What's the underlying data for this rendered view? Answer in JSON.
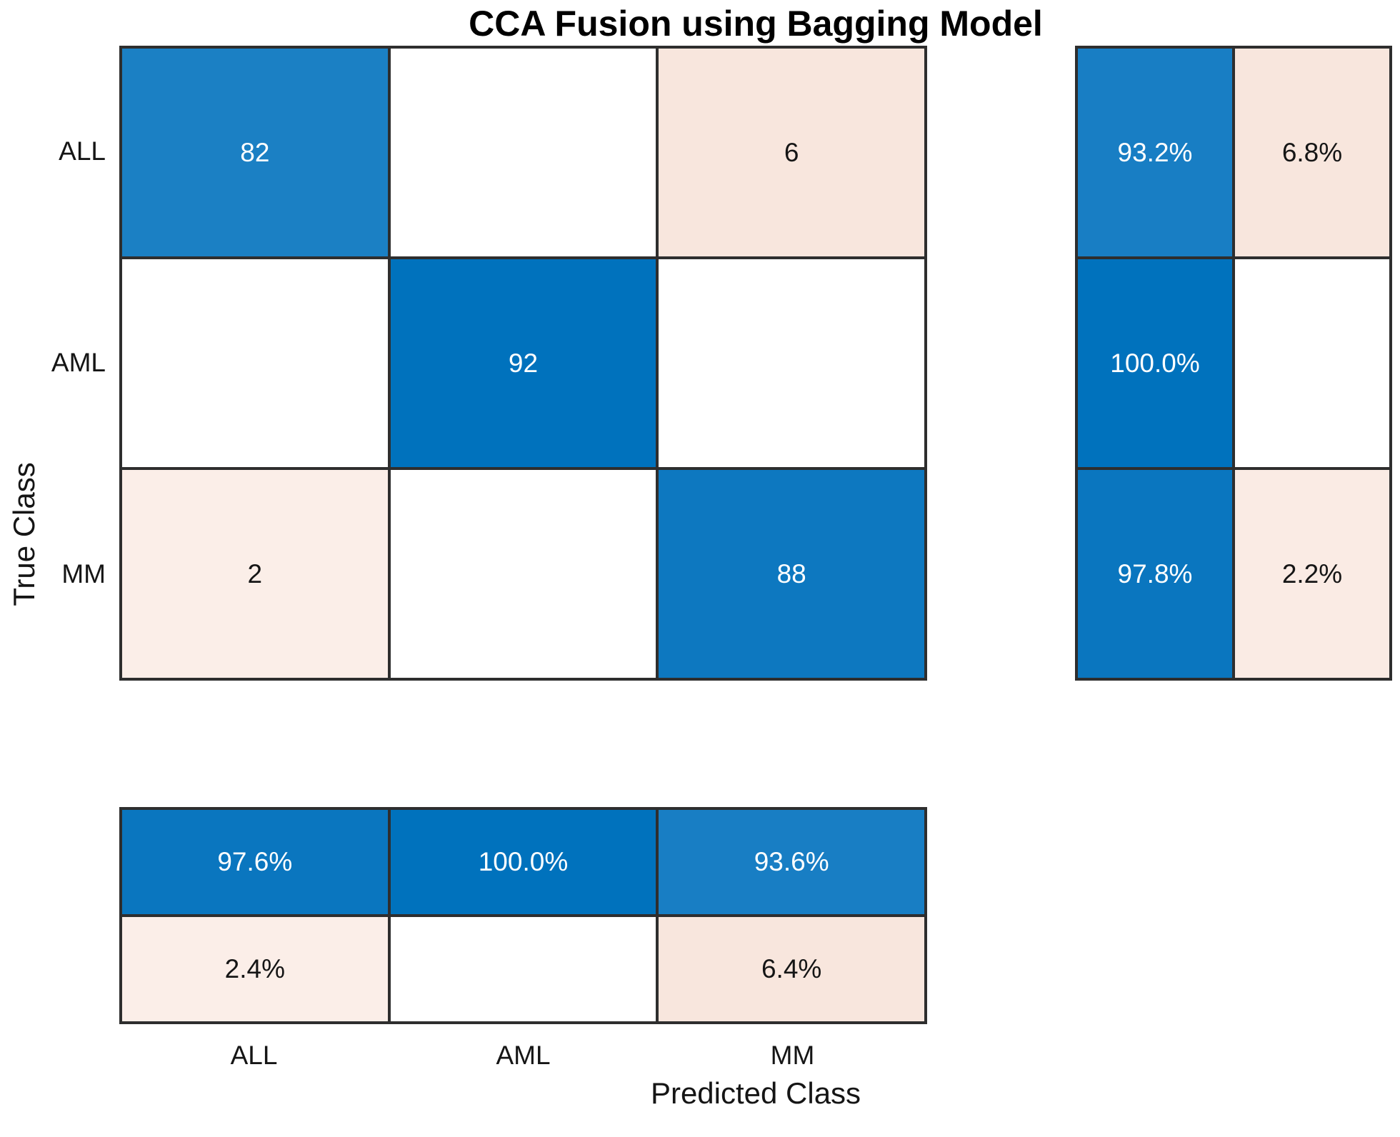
{
  "title": "CCA Fusion using Bagging Model",
  "x_axis": {
    "label": "Predicted Class",
    "ticks": [
      "ALL",
      "AML",
      "MM"
    ]
  },
  "y_axis": {
    "label": "True Class",
    "ticks": [
      "ALL",
      "AML",
      "MM"
    ]
  },
  "colors": {
    "diagonal_blue_max": "#0072bd",
    "grid_line": "#2e2e2e",
    "text_dark": "#151515",
    "text_light": "#ffffff",
    "offdiagonal_pink": "#f8e6dd"
  },
  "matrix": {
    "cells": [
      [
        {
          "text": "82",
          "bg": "#1b80c4",
          "fg": "#ffffff"
        },
        {
          "text": "",
          "bg": "#ffffff",
          "fg": "#151515"
        },
        {
          "text": "6",
          "bg": "#f8e6dd",
          "fg": "#151515"
        }
      ],
      [
        {
          "text": "",
          "bg": "#ffffff",
          "fg": "#151515"
        },
        {
          "text": "92",
          "bg": "#0072bd",
          "fg": "#ffffff"
        },
        {
          "text": "",
          "bg": "#ffffff",
          "fg": "#151515"
        }
      ],
      [
        {
          "text": "2",
          "bg": "#fbeee8",
          "fg": "#151515"
        },
        {
          "text": "",
          "bg": "#ffffff",
          "fg": "#151515"
        },
        {
          "text": "88",
          "bg": "#0d78c0",
          "fg": "#ffffff"
        }
      ]
    ]
  },
  "row_summary": {
    "cells": [
      [
        {
          "text": "93.2%",
          "bg": "#187ec4",
          "fg": "#ffffff"
        },
        {
          "text": "6.8%",
          "bg": "#f8e6dd",
          "fg": "#151515"
        }
      ],
      [
        {
          "text": "100.0%",
          "bg": "#0072bd",
          "fg": "#ffffff"
        },
        {
          "text": "",
          "bg": "#ffffff",
          "fg": "#151515"
        }
      ],
      [
        {
          "text": "97.8%",
          "bg": "#0a76bf",
          "fg": "#ffffff"
        },
        {
          "text": "2.2%",
          "bg": "#faebe4",
          "fg": "#151515"
        }
      ]
    ]
  },
  "col_summary": {
    "cells": [
      [
        {
          "text": "97.6%",
          "bg": "#0a76bf",
          "fg": "#ffffff"
        },
        {
          "text": "100.0%",
          "bg": "#0072bd",
          "fg": "#ffffff"
        },
        {
          "text": "93.6%",
          "bg": "#187ec4",
          "fg": "#ffffff"
        }
      ],
      [
        {
          "text": "2.4%",
          "bg": "#fbeee8",
          "fg": "#151515"
        },
        {
          "text": "",
          "bg": "#ffffff",
          "fg": "#151515"
        },
        {
          "text": "6.4%",
          "bg": "#f8e6dd",
          "fg": "#151515"
        }
      ]
    ]
  },
  "chart_data": {
    "type": "heatmap",
    "subtype": "confusion-matrix",
    "title": "CCA Fusion using Bagging Model",
    "xlabel": "Predicted Class",
    "ylabel": "True Class",
    "classes": [
      "ALL",
      "AML",
      "MM"
    ],
    "counts": [
      [
        82,
        0,
        6
      ],
      [
        0,
        92,
        0
      ],
      [
        2,
        0,
        88
      ]
    ],
    "row_summary_pct": {
      "correct": [
        93.2,
        100.0,
        97.8
      ],
      "incorrect": [
        6.8,
        0.0,
        2.2
      ]
    },
    "col_summary_pct": {
      "correct": [
        97.6,
        100.0,
        93.6
      ],
      "incorrect": [
        2.4,
        0.0,
        6.4
      ]
    },
    "legend": "none",
    "grid": "cell-borders"
  }
}
